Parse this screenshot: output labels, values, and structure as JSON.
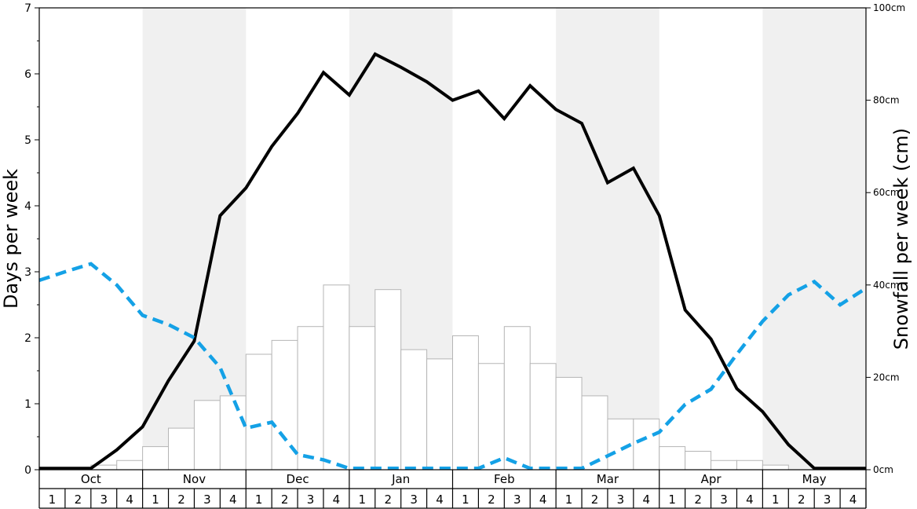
{
  "chart_data": {
    "type": "bar",
    "title": "",
    "ylabel": "Days per week",
    "ylabel_right": "Snowfall per week (cm)",
    "ylim": [
      0,
      7
    ],
    "ylim_right": [
      0,
      100
    ],
    "yticks_left": [
      "0",
      "1",
      "2",
      "3",
      "4",
      "5",
      "6",
      "7"
    ],
    "yticks_right": [
      "0cm",
      "20cm",
      "40cm",
      "60cm",
      "80cm",
      "100cm"
    ],
    "months": [
      "Oct",
      "Nov",
      "Dec",
      "Jan",
      "Feb",
      "Mar",
      "Apr",
      "May"
    ],
    "week_labels": [
      "1",
      "2",
      "3",
      "4"
    ],
    "colors": {
      "shade": "#f0f0f0",
      "bars_fill": "#ffffff",
      "bars_edge": "#b5b5b5",
      "black_line": "#000000",
      "blue_line": "#14a1e6"
    },
    "series": [
      {
        "type": "bar",
        "axis": "right",
        "values": [
          0.0,
          0.0,
          1.0,
          2.0,
          5.0,
          9.0,
          15.0,
          16.0,
          25.0,
          28.0,
          31.0,
          40.0,
          31.0,
          39.0,
          26.0,
          24.0,
          29.0,
          23.0,
          31.0,
          23.0,
          20.0,
          16.0,
          11.0,
          11.0,
          5.0,
          4.0,
          2.0,
          2.0,
          1.0,
          0.0,
          0.0,
          0.0
        ]
      },
      {
        "type": "line",
        "axis": "left",
        "style": "solid",
        "values": [
          0.02,
          0.02,
          0.02,
          0.3,
          0.65,
          1.35,
          1.95,
          3.85,
          4.27,
          4.9,
          5.4,
          6.02,
          5.68,
          6.3,
          6.1,
          5.88,
          5.6,
          5.74,
          5.32,
          5.82,
          5.46,
          5.25,
          4.35,
          4.57,
          3.85,
          2.42,
          1.98,
          1.23,
          0.88,
          0.38,
          0.02,
          0.02,
          0.02
        ]
      },
      {
        "type": "line",
        "axis": "left",
        "style": "dashed",
        "values": [
          2.87,
          3.0,
          3.12,
          2.8,
          2.34,
          2.2,
          2.0,
          1.55,
          0.63,
          0.72,
          0.23,
          0.15,
          0.02,
          0.02,
          0.02,
          0.02,
          0.02,
          0.02,
          0.18,
          0.02,
          0.02,
          0.02,
          0.21,
          0.4,
          0.57,
          0.99,
          1.22,
          1.75,
          2.25,
          2.65,
          2.85,
          2.5,
          2.75
        ]
      }
    ]
  }
}
